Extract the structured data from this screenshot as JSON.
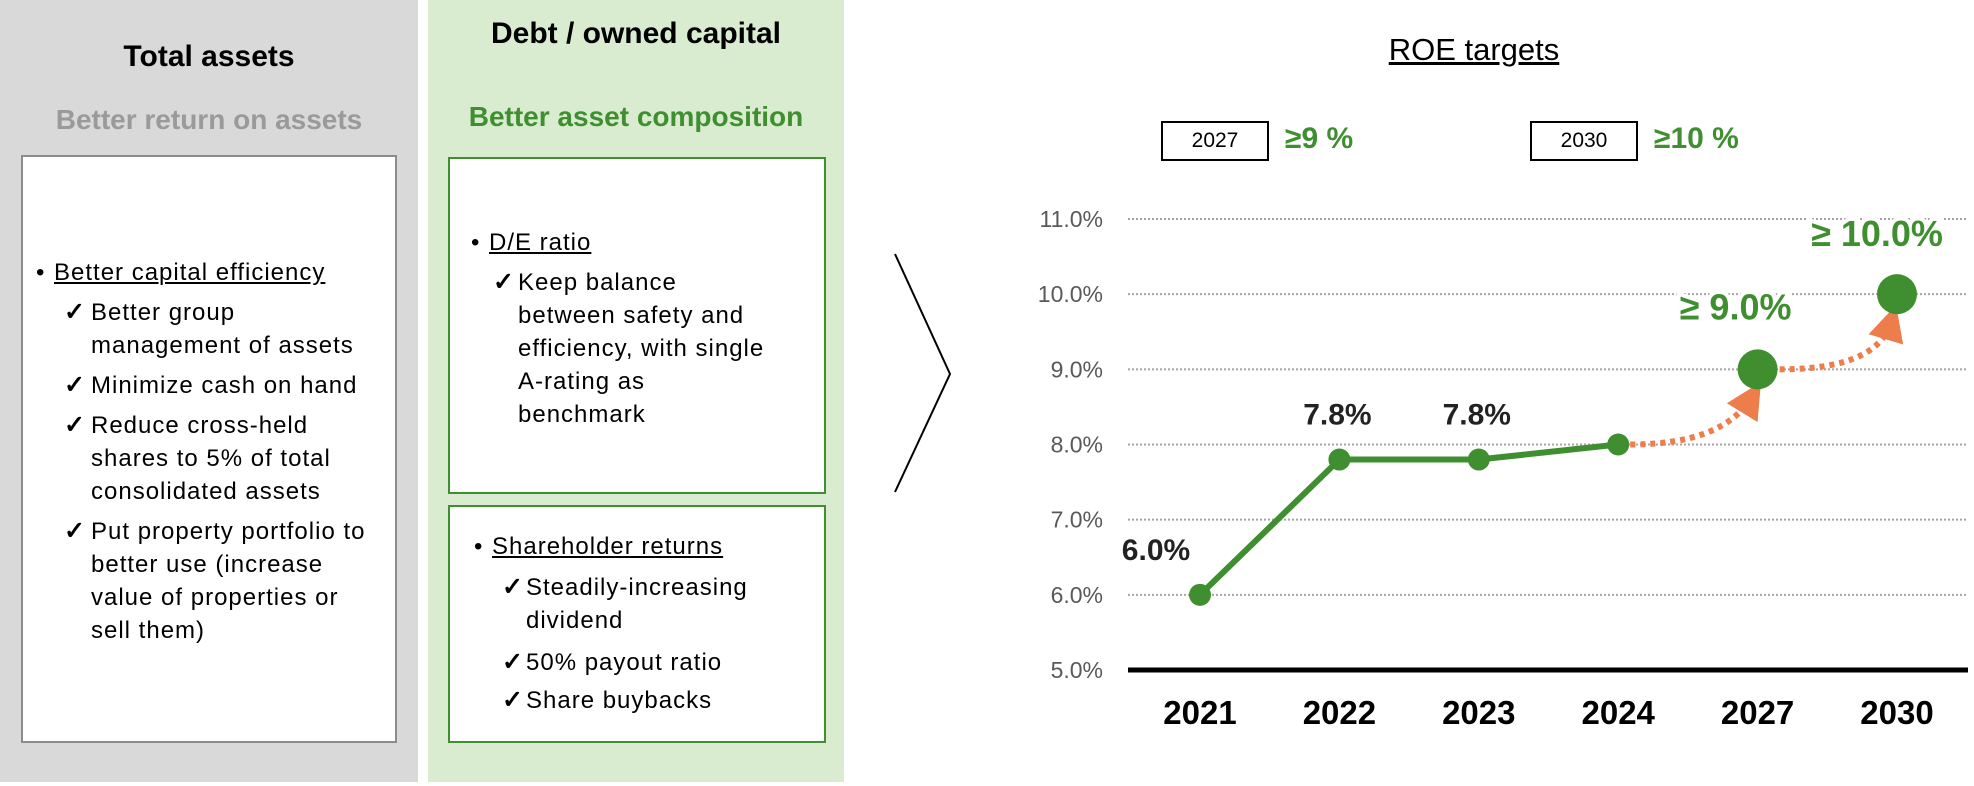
{
  "left_panel": {
    "title": "Total assets",
    "subtitle": "Better return on assets",
    "bullet": "Better capital efficiency",
    "items": [
      [
        "Better group",
        "management of assets"
      ],
      [
        "Minimize cash on hand"
      ],
      [
        "Reduce cross-held",
        "shares to 5% of total",
        "consolidated assets"
      ],
      [
        "Put property portfolio to",
        "better use (increase",
        "value of properties or",
        "sell them)"
      ]
    ]
  },
  "middle_panel": {
    "title": "Debt / owned capital",
    "subtitle": "Better asset composition",
    "box1": {
      "bullet": "D/E ratio",
      "items": [
        [
          "Keep balance",
          "between safety and",
          "efficiency, with single",
          "A-rating as",
          "benchmark"
        ]
      ]
    },
    "box2": {
      "bullet": "Shareholder returns",
      "items": [
        [
          "Steadily-increasing",
          "dividend"
        ],
        [
          "50% payout ratio"
        ],
        [
          "Share buybacks"
        ]
      ]
    }
  },
  "symbols": {
    "bullet": "•",
    "check": "✓"
  },
  "targets": [
    {
      "year": "2027",
      "value": "≥9 %"
    },
    {
      "year": "2030",
      "value": "≥10 %"
    }
  ],
  "colors": {
    "green": "#3f8f30",
    "orange": "#ed7d4a",
    "gray_panel": "#d9d9d9",
    "green_panel": "#d9ecd0",
    "subtitle_gray": "#9a9a9a"
  },
  "chart_data": {
    "type": "line",
    "title": "ROE targets",
    "categories": [
      "2021",
      "2022",
      "2023",
      "2024",
      "2027",
      "2030"
    ],
    "values": [
      6.0,
      7.8,
      7.8,
      8.0,
      9.0,
      10.0
    ],
    "data_labels": [
      "6.0%",
      "7.8%",
      "7.8%",
      "",
      "≥ 9.0%",
      "≥ 10.0%"
    ],
    "actual_through": "2024",
    "target_points": [
      "2027",
      "2030"
    ],
    "projection_style": "orange dotted arrows",
    "ylim": [
      5.0,
      11.0
    ],
    "yticks": [
      "5.0%",
      "6.0%",
      "7.0%",
      "8.0%",
      "9.0%",
      "10.0%",
      "11.0%"
    ],
    "ytick_values": [
      5,
      6,
      7,
      8,
      9,
      10,
      11
    ],
    "grid": true,
    "xlabel": "",
    "ylabel": ""
  }
}
